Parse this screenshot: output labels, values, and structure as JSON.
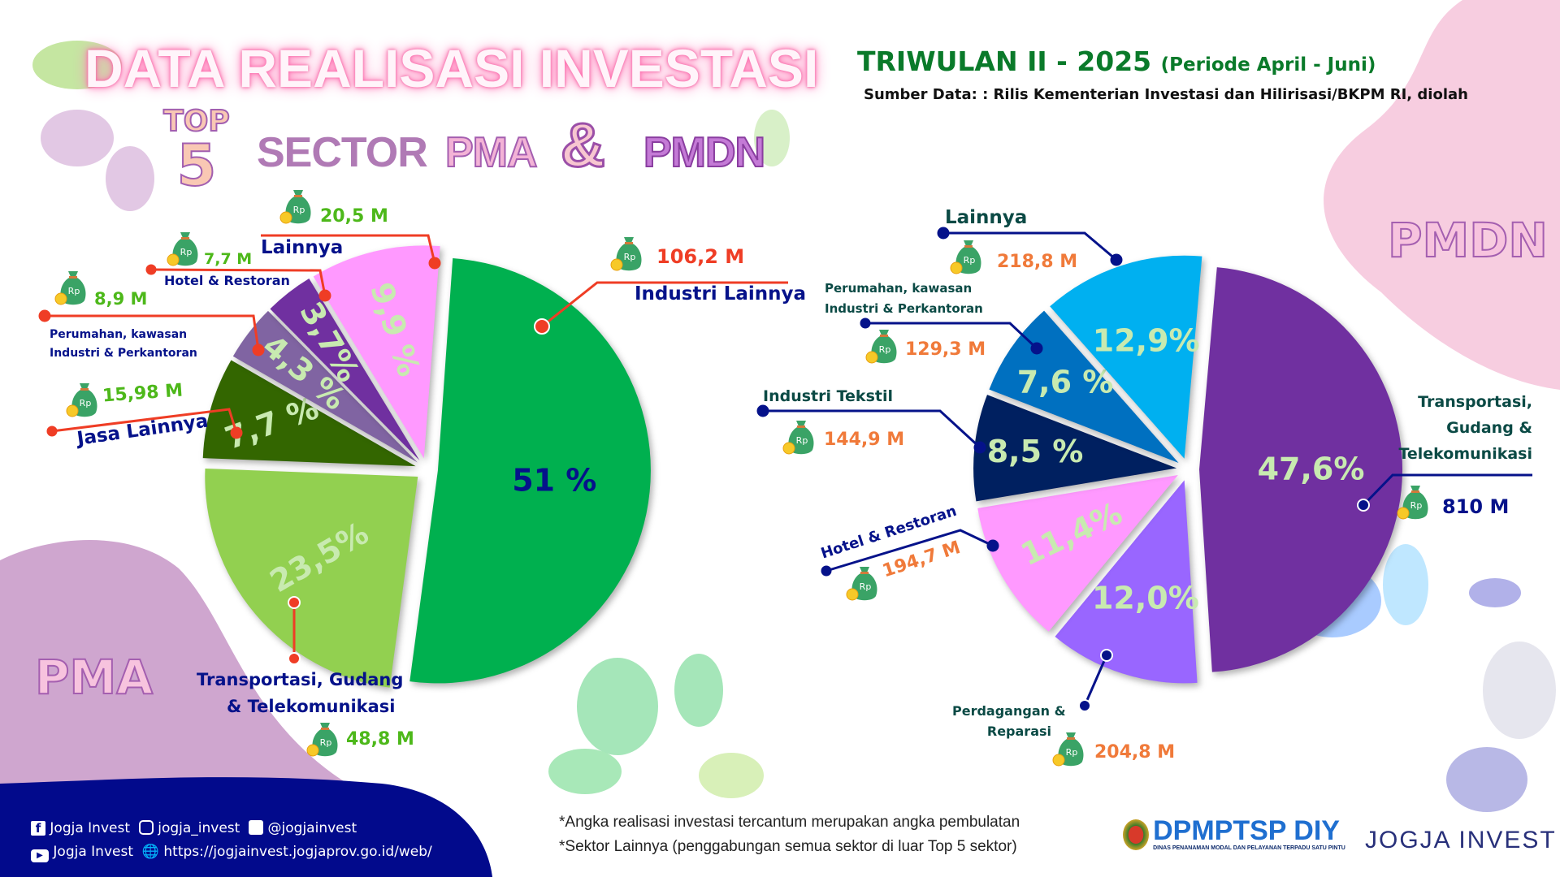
{
  "header": {
    "title": "DATA REALISASI INVESTASI",
    "period_main": "TRIWULAN II - 2025",
    "period_sub": "(Periode April - Juni)",
    "source": "Sumber Data: : Rilis Kementerian Investasi dan Hilirisasi/BKPM RI, diolah",
    "top": "TOP",
    "five": "5",
    "sector": "SECTOR",
    "pma": "PMA",
    "amp": "&",
    "pmdn": "PMDN"
  },
  "chart_data": [
    {
      "type": "pie",
      "title": "PMA",
      "unit": "Rp Miliar",
      "slices": [
        {
          "label": "Industri Lainnya",
          "percent": 51,
          "pct_label": "51  %",
          "value": "106,2 M",
          "color": "#00b04f"
        },
        {
          "label": "Transportasi, Gudang & Telekomunikasi",
          "percent": 23.5,
          "pct_label": "23,5%",
          "value": "48,8 M",
          "color": "#92d050"
        },
        {
          "label": "Jasa Lainnya",
          "percent": 7.7,
          "pct_label": "7,7  %",
          "value": "15,98 M",
          "color": "#336600"
        },
        {
          "label": "Perumahan, kawasan Industri & Perkantoran",
          "percent": 4.3,
          "pct_label": "4,3  %",
          "value": "8,9 M",
          "color": "#8064a2"
        },
        {
          "label": "Hotel & Restoran",
          "percent": 3.7,
          "pct_label": "3,7%",
          "value": "7,7 M",
          "color": "#7030a0"
        },
        {
          "label": "Lainnya",
          "percent": 9.9,
          "pct_label": "9,9 %",
          "value": "20,5 M",
          "color": "#ff99ff"
        }
      ]
    },
    {
      "type": "pie",
      "title": "PMDN",
      "unit": "Rp Miliar",
      "slices": [
        {
          "label": "Transportasi, Gudang & Telekomunikasi",
          "percent": 47.6,
          "pct_label": "47,6%",
          "value": "810 M",
          "color": "#7030a0"
        },
        {
          "label": "Perdagangan & Reparasi",
          "percent": 12.0,
          "pct_label": "12,0%",
          "value": "204,8 M",
          "color": "#9966ff"
        },
        {
          "label": "Hotel & Restoran",
          "percent": 11.4,
          "pct_label": "11,4%",
          "value": "194,7 M",
          "color": "#ff99ff"
        },
        {
          "label": "Industri Tekstil",
          "percent": 8.5,
          "pct_label": "8,5  %",
          "value": "144,9 M",
          "color": "#002060"
        },
        {
          "label": "Perumahan, kawasan Industri & Perkantoran",
          "percent": 7.6,
          "pct_label": "7,6  %",
          "value": "129,3 M",
          "color": "#0070c0"
        },
        {
          "label": "Lainnya",
          "percent": 12.9,
          "pct_label": "12,9%",
          "value": "218,8 M",
          "color": "#00b0f0"
        }
      ]
    }
  ],
  "pma_labels": {
    "industri_lainnya": "Industri Lainnya",
    "transport_1": "Transportasi, Gudang",
    "transport_2": "& Telekomunikasi",
    "jasa": "Jasa Lainnya",
    "perumahan_1": "Perumahan, kawasan",
    "perumahan_2": "Industri & Perkantoran",
    "hotel": "Hotel & Restoran",
    "lainnya": "Lainnya"
  },
  "pmdn_labels": {
    "transport_1": "Transportasi,",
    "transport_2": "Gudang &",
    "transport_3": "Telekomunikasi",
    "perdagangan_1": "Perdagangan &",
    "perdagangan_2": "Reparasi",
    "hotel": "Hotel & Restoran",
    "tekstil": "Industri Tekstil",
    "perumahan_1": "Perumahan, kawasan",
    "perumahan_2": "Industri & Perkantoran",
    "lainnya": "Lainnya"
  },
  "bag_text": "Rp",
  "footer": {
    "facebook": "Jogja Invest",
    "instagram": "jogja_invest",
    "twitter": "@jogjainvest",
    "youtube": "Jogja Invest",
    "website": "https://jogjainvest.jogjaprov.go.id/web/",
    "note1": "*Angka realisasi investasi tercantum merupakan angka pembulatan",
    "note2": "*Sektor Lainnya (penggabungan semua sektor di luar Top 5 sektor)",
    "logo1": "DPMPTSP DIY",
    "logo1_sub": "DINAS PENANAMAN MODAL DAN PELAYANAN TERPADU SATU PINTU",
    "logo2": "JOGJA INVEST"
  },
  "colors": {
    "navy": "#05128a",
    "green_value": "#4db81a",
    "orange_value": "#f07a3a",
    "red_line": "#ef3d25",
    "footer_bg": "#020a8c"
  }
}
